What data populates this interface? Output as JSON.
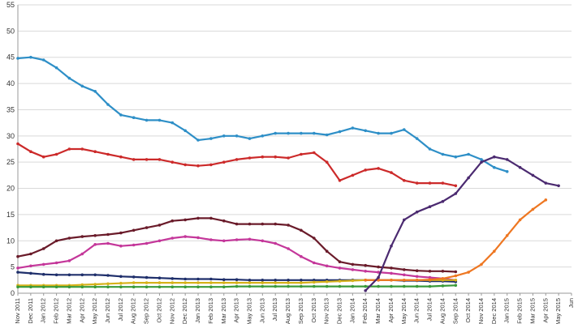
{
  "chart_data": {
    "type": "line",
    "title": "",
    "xlabel": "",
    "ylabel": "",
    "ylim": [
      0,
      55
    ],
    "yticks": [
      0,
      5,
      10,
      15,
      20,
      25,
      30,
      35,
      40,
      45,
      50,
      55
    ],
    "grid": true,
    "legend": "none",
    "x": [
      "Nov 2011",
      "Dec 2011",
      "Jan 2012",
      "Feb 2012",
      "Mar 2012",
      "Apr 2012",
      "May 2012",
      "Jun 2012",
      "Jul 2012",
      "Aug 2012",
      "Sep 2012",
      "Oct 2012",
      "Nov 2012",
      "Dec 2012",
      "Jan 2013",
      "Feb 2013",
      "Mar 2013",
      "Apr 2013",
      "May 2013",
      "Jun 2013",
      "Jul 2013",
      "Aug 2013",
      "Sep 2013",
      "Oct 2013",
      "Nov 2013",
      "Dec 2013",
      "Jan 2014",
      "Feb 2014",
      "Mar 2014",
      "Apr 2014",
      "May 2014",
      "Jun 2014",
      "Jul 2014",
      "Aug 2014",
      "Sep 2014",
      "Oct 2014",
      "Nov 2014",
      "Dec 2014",
      "Jan 2015",
      "Feb 2015",
      "Mar 2015",
      "Apr 2015",
      "May 2015",
      "Jun"
    ],
    "series": [
      {
        "color": "#2e8fc7",
        "values": [
          44.8,
          45,
          44.5,
          43,
          41,
          39.5,
          38.5,
          36,
          34,
          33.5,
          33,
          33,
          32.5,
          31,
          29.2,
          29.5,
          30,
          30,
          29.5,
          30,
          30.5,
          30.5,
          30.5,
          30.5,
          30.2,
          30.8,
          31.5,
          31,
          30.5,
          30.5,
          31.2,
          29.5,
          27.5,
          26.5,
          26,
          26.5,
          25.5,
          24,
          23.2,
          null,
          null,
          null,
          null,
          null
        ]
      },
      {
        "color": "#cc2a2a",
        "values": [
          28.5,
          27,
          26,
          26.5,
          27.5,
          27.5,
          27,
          26.5,
          26,
          25.5,
          25.5,
          25.5,
          25,
          24.5,
          24.3,
          24.5,
          25,
          25.5,
          25.8,
          26,
          26,
          25.8,
          26.5,
          26.8,
          25,
          21.5,
          22.5,
          23.5,
          23.8,
          23,
          21.5,
          21,
          21,
          21,
          20.5,
          null,
          null,
          null,
          null,
          null,
          null,
          null,
          null,
          null
        ]
      },
      {
        "color": "#6a1b2a",
        "values": [
          7,
          7.5,
          8.5,
          10,
          10.5,
          10.8,
          11,
          11.2,
          11.5,
          12,
          12.5,
          13,
          13.8,
          14,
          14.3,
          14.3,
          13.8,
          13.2,
          13.2,
          13.2,
          13.2,
          13,
          12,
          10.5,
          8,
          6,
          5.5,
          5.3,
          5,
          4.8,
          4.5,
          4.3,
          4.2,
          4.2,
          4.1,
          null,
          null,
          null,
          null,
          null,
          null,
          null,
          null,
          null
        ]
      },
      {
        "color": "#c4379a",
        "values": [
          4.8,
          5.2,
          5.5,
          5.8,
          6.2,
          7.5,
          9.3,
          9.5,
          9,
          9.2,
          9.5,
          10,
          10.5,
          10.8,
          10.6,
          10.2,
          10,
          10.2,
          10.3,
          10,
          9.5,
          8.5,
          7,
          5.8,
          5.2,
          4.8,
          4.5,
          4.2,
          4,
          3.8,
          3.5,
          3.2,
          3,
          2.8,
          2.5,
          null,
          null,
          null,
          null,
          null,
          null,
          null,
          null,
          null
        ]
      },
      {
        "color": "#1f2f6b",
        "values": [
          4,
          3.8,
          3.6,
          3.5,
          3.5,
          3.5,
          3.5,
          3.4,
          3.2,
          3.1,
          3,
          2.9,
          2.8,
          2.7,
          2.7,
          2.7,
          2.6,
          2.6,
          2.5,
          2.5,
          2.5,
          2.5,
          2.5,
          2.5,
          2.5,
          2.5,
          2.5,
          2.5,
          2.5,
          2.5,
          2.4,
          2.4,
          2.3,
          2.3,
          2.2,
          null,
          null,
          null,
          null,
          null,
          null,
          null,
          null,
          null
        ]
      },
      {
        "color": "#d6b21a",
        "values": [
          1.5,
          1.5,
          1.5,
          1.5,
          1.5,
          1.6,
          1.7,
          1.8,
          1.9,
          2,
          2,
          2,
          2,
          2,
          2,
          2,
          2,
          2,
          2,
          2,
          2,
          2,
          2,
          2.1,
          2.2,
          2.3,
          2.4,
          2.5,
          2.5,
          2.5,
          2.5,
          2.5,
          2.5,
          2.5,
          2.5,
          null,
          null,
          null,
          null,
          null,
          null,
          null,
          null,
          null
        ]
      },
      {
        "color": "#3a9a3a",
        "values": [
          1.2,
          1.2,
          1.2,
          1.2,
          1.2,
          1.2,
          1.2,
          1.2,
          1.2,
          1.2,
          1.2,
          1.2,
          1.2,
          1.2,
          1.2,
          1.2,
          1.2,
          1.3,
          1.3,
          1.3,
          1.3,
          1.3,
          1.3,
          1.3,
          1.3,
          1.3,
          1.3,
          1.3,
          1.3,
          1.3,
          1.3,
          1.3,
          1.3,
          1.4,
          1.5,
          null,
          null,
          null,
          null,
          null,
          null,
          null,
          null,
          null
        ]
      },
      {
        "color": "#ee7722",
        "values": [
          null,
          null,
          null,
          null,
          null,
          null,
          null,
          null,
          null,
          null,
          null,
          null,
          null,
          null,
          null,
          null,
          null,
          null,
          null,
          null,
          null,
          null,
          null,
          null,
          null,
          null,
          null,
          2.5,
          2.5,
          2.5,
          2.5,
          2.5,
          2.6,
          2.8,
          3.3,
          4,
          5.5,
          8,
          11,
          14,
          16,
          17.8,
          null,
          null
        ]
      },
      {
        "color": "#4b2a70",
        "values": [
          null,
          null,
          null,
          null,
          null,
          null,
          null,
          null,
          null,
          null,
          null,
          null,
          null,
          null,
          null,
          null,
          null,
          null,
          null,
          null,
          null,
          null,
          null,
          null,
          null,
          null,
          null,
          0.5,
          3,
          9,
          14,
          15.5,
          16.5,
          17.5,
          19,
          22,
          25,
          26,
          25.5,
          24,
          22.5,
          21,
          20.5,
          null
        ]
      }
    ]
  }
}
